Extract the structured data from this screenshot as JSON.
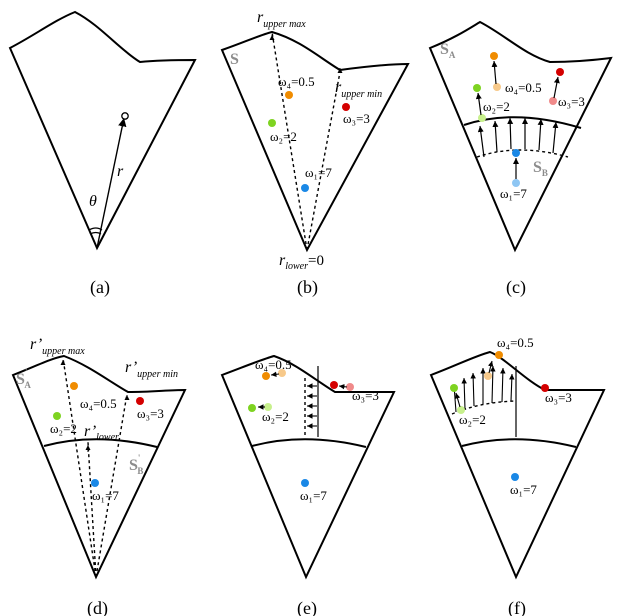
{
  "colors": {
    "omega1": "#1a88e6",
    "omega1_light": "#8ec6f3",
    "omega2": "#7ed321",
    "omega2_light": "#c7f08c",
    "omega3": "#d40000",
    "omega3_light": "#f08a8a",
    "omega4": "#f08c00",
    "omega4_light": "#f7c98a",
    "region_label": "#8c8c8c"
  },
  "panels": {
    "a": {
      "label": "(a)",
      "theta": "θ",
      "r": "r"
    },
    "b": {
      "label": "(b)",
      "region": "S",
      "r_upper_max": {
        "main": "r",
        "sub": "upper max"
      },
      "r_upper_min": {
        "main": "r",
        "sub": "upper min"
      },
      "r_lower": {
        "main": "r",
        "sub": "lower",
        "tail": "=0"
      },
      "w4": "ω₄=0.5",
      "w3": "ω₃=3",
      "w2": "ω₂=2",
      "w1": "ω₁=7"
    },
    "c": {
      "label": "(c)",
      "region_a": "S",
      "region_a_sub": "A",
      "region_b": "S",
      "region_b_sub": "B",
      "w4": "ω₄=0.5",
      "w3": "ω₃=3",
      "w2": "ω₂=2",
      "w1": "ω₁=7"
    },
    "d": {
      "label": "(d)",
      "region_a": "S",
      "region_a_sub": "A",
      "region_a_prime": "'",
      "region_b": "S",
      "region_b_sub": "B",
      "region_b_prime": "'",
      "r_upper_max": {
        "main": "r’",
        "sub": "upper max"
      },
      "r_upper_min": {
        "main": "r’",
        "sub": "upper min"
      },
      "r_lower": {
        "main": "r’",
        "sub": "lower"
      },
      "w4": "ω₄=0.5",
      "w3": "ω₃=3",
      "w2": "ω₂=2",
      "w1": "ω₁=7"
    },
    "e": {
      "label": "(e)",
      "w4": "ω₄=0.5",
      "w3": "ω₃=3",
      "w2": "ω₂=2",
      "w1": "ω₁=7"
    },
    "f": {
      "label": "(f)",
      "w4": "ω₄=0.5",
      "w3": "ω₃=3",
      "w2": "ω₂=2",
      "w1": "ω₁=7"
    }
  }
}
